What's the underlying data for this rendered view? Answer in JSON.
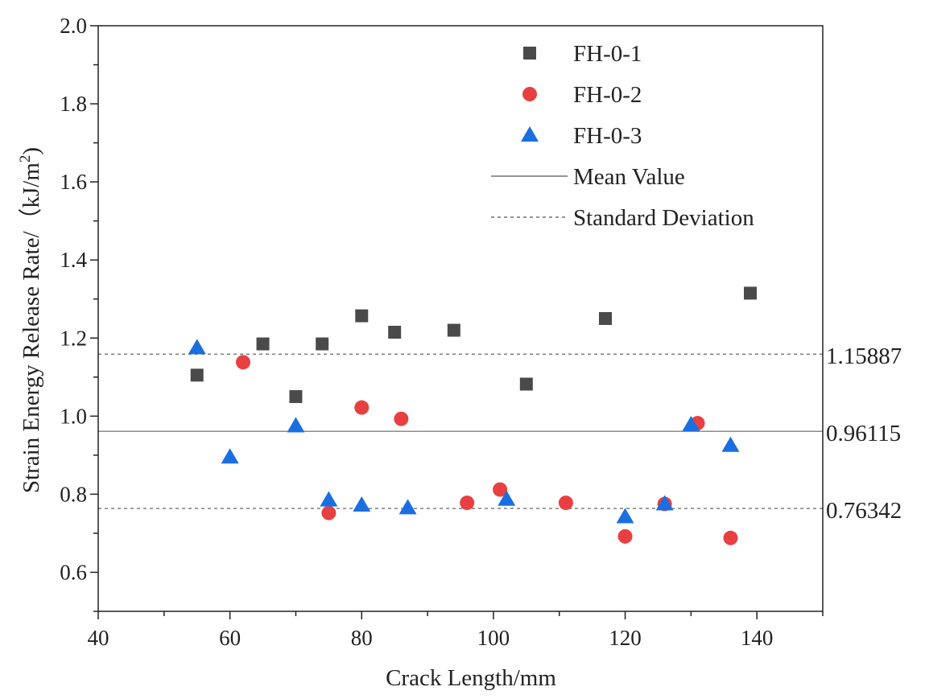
{
  "chart_data": {
    "type": "scatter",
    "xlabel": "Crack Length/mm",
    "ylabel_main": "Strain Energy Release Rate/（kJ/m",
    "ylabel_sup": "2",
    "ylabel_close": ")",
    "xlim": [
      40,
      150
    ],
    "ylim": [
      0.5,
      2.0
    ],
    "x_ticks": [
      "40",
      "60",
      "80",
      "100",
      "120",
      "140"
    ],
    "y_ticks": [
      "0.6",
      "0.8",
      "1.0",
      "1.2",
      "1.4",
      "1.6",
      "1.8",
      "2.0"
    ],
    "grid": false,
    "legend_position": "top-right",
    "series": [
      {
        "name": "FH-0-1",
        "marker": "square",
        "color": "#4a4a4a",
        "points": [
          [
            55,
            1.105
          ],
          [
            65,
            1.185
          ],
          [
            70,
            1.05
          ],
          [
            74,
            1.185
          ],
          [
            80,
            1.257
          ],
          [
            85,
            1.215
          ],
          [
            94,
            1.22
          ],
          [
            105,
            1.082
          ],
          [
            117,
            1.25
          ],
          [
            139,
            1.315
          ]
        ]
      },
      {
        "name": "FH-0-2",
        "marker": "circle",
        "color": "#e84040",
        "points": [
          [
            62,
            1.138
          ],
          [
            75,
            0.752
          ],
          [
            80,
            1.022
          ],
          [
            86,
            0.993
          ],
          [
            96,
            0.778
          ],
          [
            101,
            0.812
          ],
          [
            111,
            0.778
          ],
          [
            120,
            0.692
          ],
          [
            126,
            0.775
          ],
          [
            131,
            0.982
          ],
          [
            136,
            0.688
          ]
        ]
      },
      {
        "name": "FH-0-3",
        "marker": "triangle",
        "color": "#1a6fe0",
        "points": [
          [
            55,
            1.175
          ],
          [
            60,
            0.895
          ],
          [
            70,
            0.975
          ],
          [
            75,
            0.785
          ],
          [
            80,
            0.772
          ],
          [
            87,
            0.765
          ],
          [
            102,
            0.787
          ],
          [
            120,
            0.742
          ],
          [
            126,
            0.775
          ],
          [
            130,
            0.978
          ],
          [
            136,
            0.925
          ]
        ]
      }
    ],
    "reference_lines": [
      {
        "name": "Mean Value",
        "style": "solid",
        "value": 0.96115,
        "label": "0.96115"
      },
      {
        "name": "Standard Deviation",
        "style": "dashed",
        "value": 1.15887,
        "label": "1.15887"
      },
      {
        "name": "Standard Deviation",
        "style": "dashed",
        "value": 0.76342,
        "label": "0.76342"
      }
    ],
    "legend": [
      {
        "label": "FH-0-1",
        "kind": "square",
        "color": "#4a4a4a"
      },
      {
        "label": "FH-0-2",
        "kind": "circle",
        "color": "#e84040"
      },
      {
        "label": "FH-0-3",
        "kind": "triangle",
        "color": "#1a6fe0"
      },
      {
        "label": "Mean Value",
        "kind": "solid-line",
        "color": "#555555"
      },
      {
        "label": "Standard Deviation",
        "kind": "dashed-line",
        "color": "#555555"
      }
    ]
  }
}
